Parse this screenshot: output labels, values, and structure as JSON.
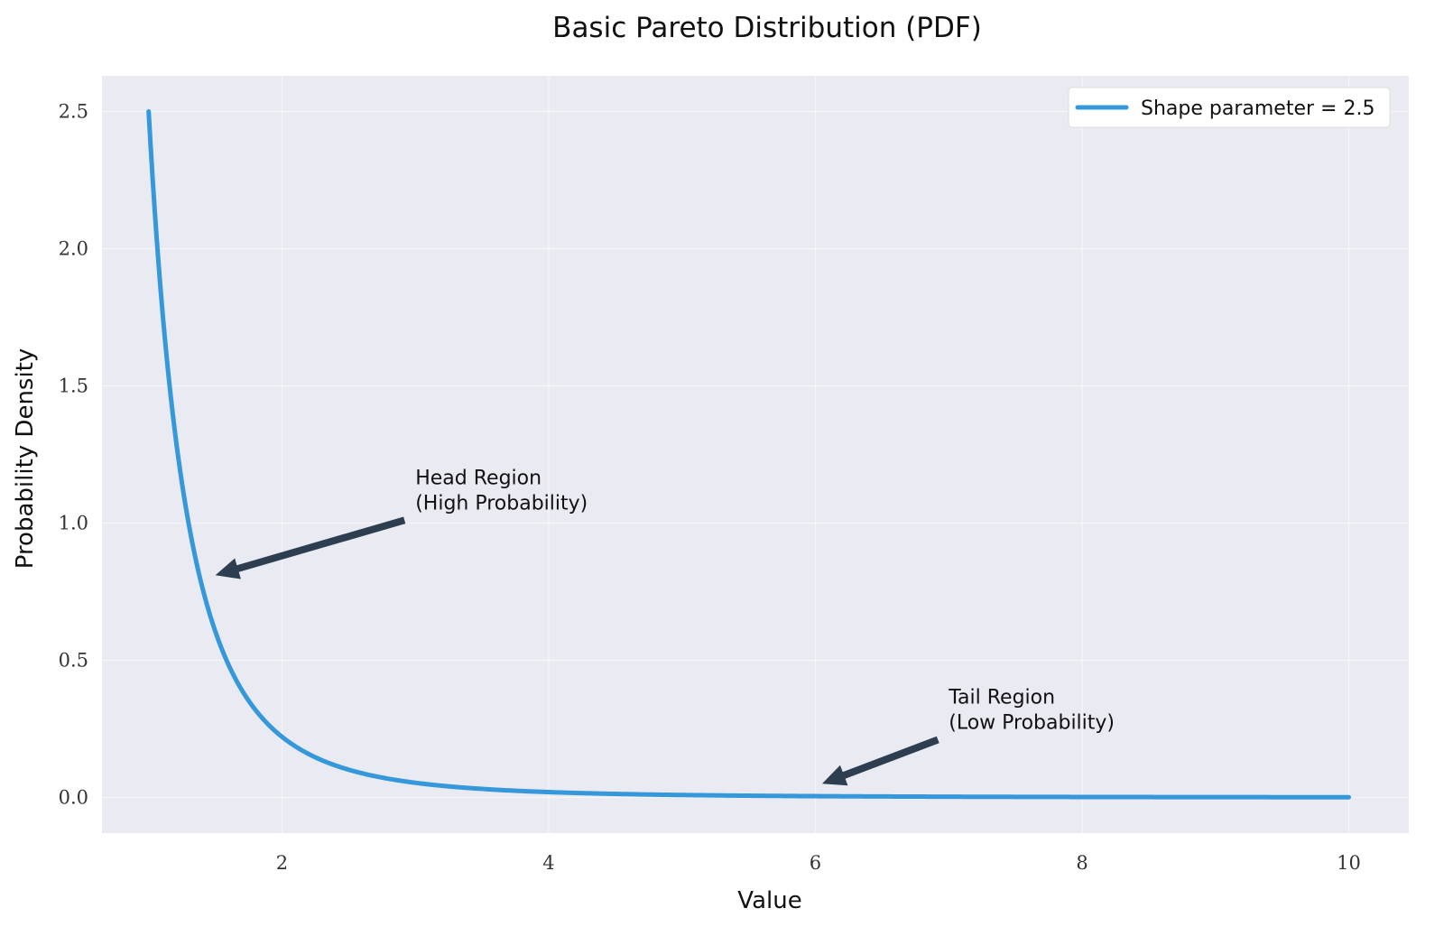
{
  "chart_data": {
    "type": "line",
    "title": "Basic Pareto Distribution (PDF)",
    "xlabel": "Value",
    "ylabel": "Probability Density",
    "xlim": [
      0.65,
      10.45
    ],
    "ylim": [
      -0.13,
      2.63
    ],
    "xticks": [
      2,
      4,
      6,
      8,
      10
    ],
    "yticks": [
      0.0,
      0.5,
      1.0,
      1.5,
      2.0,
      2.5
    ],
    "grid": true,
    "legend_position": "top-right",
    "series": [
      {
        "name": "Shape parameter = 2.5",
        "function": "pareto_pdf",
        "shape": 2.5,
        "scale": 1,
        "x_range": [
          1,
          10
        ],
        "color": "#3498db"
      }
    ],
    "annotations": [
      {
        "lines": [
          "Head Region",
          "(High Probability)"
        ],
        "text_x": 3.0,
        "text_y": 1.05,
        "arrow_to_x": 1.5,
        "arrow_to_y": 0.81
      },
      {
        "lines": [
          "Tail Region",
          "(Low Probability)"
        ],
        "text_x": 7.0,
        "text_y": 0.25,
        "arrow_to_x": 6.05,
        "arrow_to_y": 0.05
      }
    ]
  },
  "colors": {
    "plot_background": "#eaeaf2",
    "grid": "#f5f5f9",
    "line": "#3498db",
    "arrow": "#2c3e50",
    "legend_background": "#ffffff",
    "legend_border": "#dddddd"
  }
}
